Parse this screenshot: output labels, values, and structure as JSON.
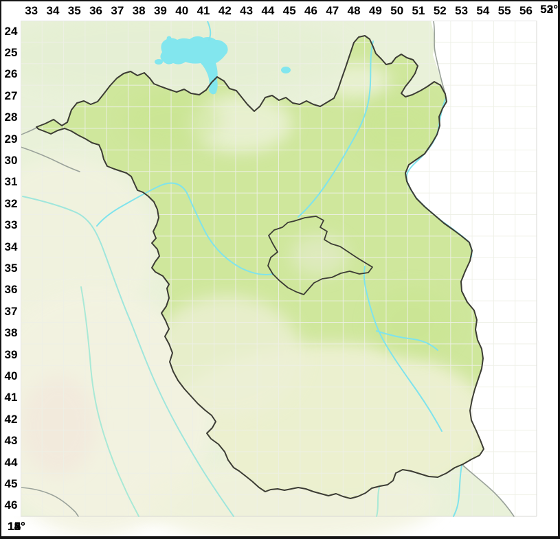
{
  "map": {
    "grid": {
      "column_labels": [
        "33",
        "34",
        "35",
        "36",
        "37",
        "38",
        "39",
        "40",
        "41",
        "42",
        "43",
        "44",
        "45",
        "46",
        "47",
        "48",
        "49",
        "50",
        "51",
        "52",
        "53",
        "54",
        "55",
        "56"
      ],
      "row_labels": [
        "24",
        "25",
        "26",
        "27",
        "28",
        "29",
        "30",
        "31",
        "32",
        "33",
        "34",
        "35",
        "36",
        "37",
        "38",
        "39",
        "40",
        "41",
        "42",
        "43",
        "44",
        "45",
        "46"
      ]
    },
    "longitude_labels": [
      "12°",
      "13°",
      "14°",
      "15°"
    ],
    "latitude_labels": [
      "53°",
      "52°"
    ],
    "colors": {
      "region_fill": "#cfe79c",
      "outside_land": "#e9f1d9",
      "lowland_cream": "#f2f3e0",
      "water": "#7fe3ec",
      "lake": "#82e6ee",
      "foreign_area": "#ffffff",
      "region_border": "#3c3c34",
      "neighbor_border": "#9aa29a",
      "grid_line": "#eef0e6",
      "frame": "#141414"
    }
  }
}
